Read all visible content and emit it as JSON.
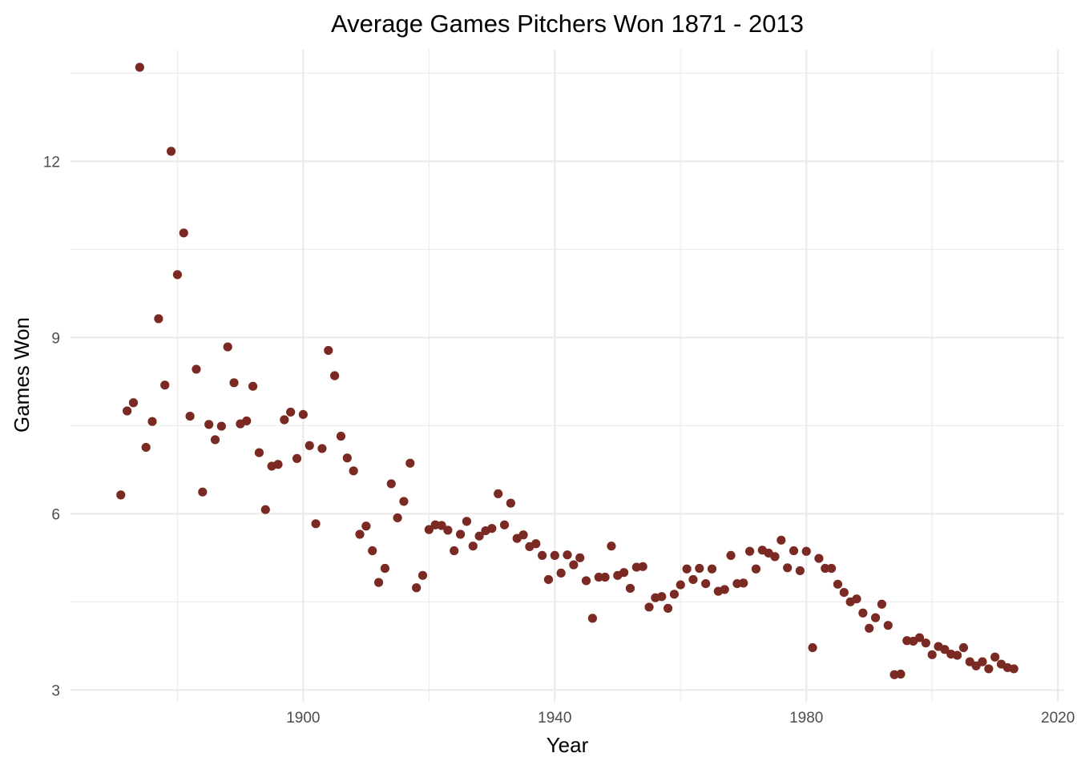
{
  "chart_data": {
    "type": "scatter",
    "title": "Average Games Pitchers Won 1871 - 2013",
    "xlabel": "Year",
    "ylabel": "Games Won",
    "xlim": [
      1863,
      2021
    ],
    "ylim": [
      2.8,
      13.9
    ],
    "x_ticks": [
      1900,
      1940,
      1980,
      2020
    ],
    "x_tick_labels": [
      "1900",
      "1940",
      "1980",
      "2020"
    ],
    "y_ticks": [
      3,
      6,
      9,
      12
    ],
    "y_tick_labels": [
      "3",
      "6",
      "9",
      "12"
    ],
    "x_minor": [
      1880,
      1920,
      1960,
      2000
    ],
    "y_minor": [
      4.5,
      7.5,
      10.5,
      13.5
    ],
    "grid": true,
    "legend": "none",
    "point_color": "#7a2a22",
    "series": [
      {
        "x": [
          1871,
          1872,
          1873,
          1874,
          1875,
          1876,
          1877,
          1878,
          1879,
          1880,
          1881,
          1882,
          1883,
          1884,
          1885,
          1886,
          1887,
          1888,
          1889,
          1890,
          1891,
          1892,
          1893,
          1894,
          1895,
          1896,
          1897,
          1898,
          1899,
          1900,
          1901,
          1902,
          1903,
          1904,
          1905,
          1906,
          1907,
          1908,
          1909,
          1910,
          1911,
          1912,
          1913,
          1914,
          1915,
          1916,
          1917,
          1918,
          1919,
          1920,
          1921,
          1922,
          1923,
          1924,
          1925,
          1926,
          1927,
          1928,
          1929,
          1930,
          1931,
          1932,
          1933,
          1934,
          1935,
          1936,
          1937,
          1938,
          1939,
          1940,
          1941,
          1942,
          1943,
          1944,
          1945,
          1946,
          1947,
          1948,
          1949,
          1950,
          1951,
          1952,
          1953,
          1954,
          1955,
          1956,
          1957,
          1958,
          1959,
          1960,
          1961,
          1962,
          1963,
          1964,
          1965,
          1966,
          1967,
          1968,
          1969,
          1970,
          1971,
          1972,
          1973,
          1974,
          1975,
          1976,
          1977,
          1978,
          1979,
          1980,
          1981,
          1982,
          1983,
          1984,
          1985,
          1986,
          1987,
          1988,
          1989,
          1990,
          1991,
          1992,
          1993,
          1994,
          1995,
          1996,
          1997,
          1998,
          1999,
          2000,
          2001,
          2002,
          2003,
          2004,
          2005,
          2006,
          2007,
          2008,
          2009,
          2010,
          2011,
          2012,
          2013
        ],
        "y": [
          6.32,
          7.75,
          7.89,
          13.6,
          7.13,
          7.57,
          9.32,
          8.19,
          12.17,
          10.07,
          10.78,
          7.66,
          8.46,
          6.37,
          7.52,
          7.26,
          7.49,
          8.84,
          8.23,
          7.53,
          7.58,
          8.17,
          7.04,
          6.07,
          6.81,
          6.84,
          7.6,
          7.73,
          6.94,
          7.69,
          7.16,
          5.83,
          7.11,
          8.78,
          8.35,
          7.32,
          6.95,
          6.73,
          5.65,
          5.79,
          5.37,
          4.83,
          5.07,
          6.51,
          5.93,
          6.21,
          6.86,
          4.74,
          4.95,
          5.73,
          5.81,
          5.8,
          5.72,
          5.37,
          5.65,
          5.87,
          5.45,
          5.62,
          5.71,
          5.75,
          6.34,
          5.81,
          6.18,
          5.58,
          5.64,
          5.44,
          5.49,
          5.29,
          4.88,
          5.29,
          4.99,
          5.3,
          5.13,
          5.25,
          4.86,
          4.22,
          4.92,
          4.92,
          5.45,
          4.95,
          5.0,
          4.73,
          5.09,
          5.1,
          4.41,
          4.57,
          4.59,
          4.39,
          4.63,
          4.79,
          5.06,
          4.88,
          5.07,
          4.81,
          5.06,
          4.68,
          4.71,
          5.29,
          4.81,
          4.82,
          5.36,
          5.06,
          5.38,
          5.33,
          5.27,
          5.55,
          5.08,
          5.37,
          5.03,
          5.36,
          3.72,
          5.24,
          5.07,
          5.07,
          4.8,
          4.66,
          4.5,
          4.55,
          4.31,
          4.05,
          4.23,
          4.46,
          4.1,
          3.26,
          3.27,
          3.84,
          3.83,
          3.89,
          3.8,
          3.6,
          3.74,
          3.69,
          3.61,
          3.59,
          3.72,
          3.48,
          3.41,
          3.48,
          3.36,
          3.56,
          3.44,
          3.38,
          3.36
        ]
      }
    ]
  }
}
